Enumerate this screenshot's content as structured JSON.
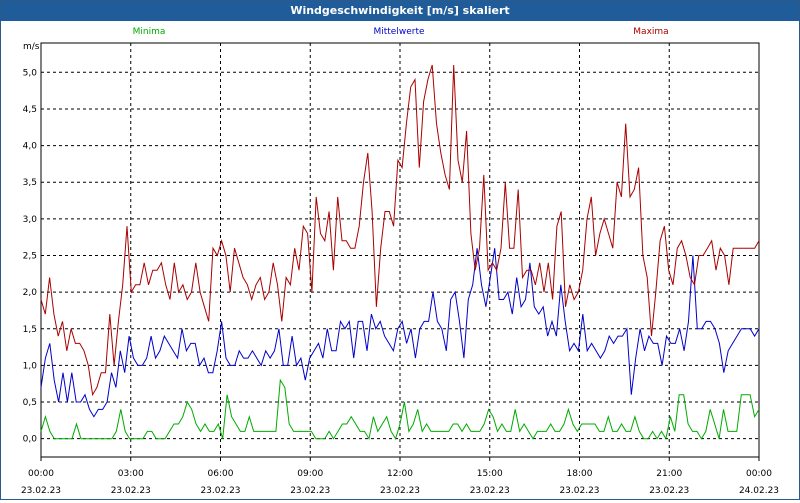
{
  "window": {
    "title": "Windgeschwindigkeit [m/s] skaliert"
  },
  "chart_data": {
    "type": "line",
    "title": "Windgeschwindigkeit [m/s] skaliert",
    "ylabel": "m/s",
    "xlabel": "",
    "ylim": [
      -0.25,
      5.4
    ],
    "xlim": [
      0,
      24
    ],
    "grid": true,
    "legend_placement": "top",
    "yticks": [
      0.0,
      0.5,
      1.0,
      1.5,
      2.0,
      2.5,
      3.0,
      3.5,
      4.0,
      4.5,
      5.0
    ],
    "ytick_labels": [
      "0,0",
      "0,5",
      "1,0",
      "1,5",
      "2,0",
      "2,5",
      "3,0",
      "3,5",
      "4,0",
      "4,5",
      "5,0"
    ],
    "xticks": [
      {
        "time": "00:00",
        "date": "23.02.23"
      },
      {
        "time": "03:00",
        "date": "23.02.23"
      },
      {
        "time": "06:00",
        "date": "23.02.23"
      },
      {
        "time": "09:00",
        "date": "23.02.23"
      },
      {
        "time": "12:00",
        "date": "23.02.23"
      },
      {
        "time": "15:00",
        "date": "23.02.23"
      },
      {
        "time": "18:00",
        "date": "23.02.23"
      },
      {
        "time": "21:00",
        "date": "23.02.23"
      },
      {
        "time": "00:00",
        "date": "24.02.23"
      }
    ],
    "x_step_hours": 0.1667,
    "series": [
      {
        "name": "Minima",
        "color": "#00aa00",
        "values": [
          0.1,
          0.3,
          0.1,
          0.0,
          0.0,
          0.0,
          0.0,
          0.0,
          0.2,
          0.0,
          0.0,
          0.0,
          0.0,
          0.0,
          0.0,
          0.0,
          0.0,
          0.1,
          0.4,
          0.1,
          0.0,
          0.0,
          0.0,
          0.0,
          0.1,
          0.1,
          0.0,
          0.0,
          0.0,
          0.1,
          0.2,
          0.2,
          0.3,
          0.5,
          0.4,
          0.2,
          0.1,
          0.2,
          0.1,
          0.1,
          0.2,
          0.0,
          0.6,
          0.3,
          0.2,
          0.1,
          0.1,
          0.3,
          0.1,
          0.1,
          0.1,
          0.1,
          0.1,
          0.1,
          0.8,
          0.7,
          0.2,
          0.1,
          0.1,
          0.1,
          0.1,
          0.1,
          0.0,
          0.0,
          0.0,
          0.1,
          0.0,
          0.1,
          0.2,
          0.2,
          0.3,
          0.2,
          0.1,
          0.1,
          0.0,
          0.3,
          0.1,
          0.2,
          0.3,
          0.1,
          0.0,
          0.2,
          0.5,
          0.1,
          0.2,
          0.4,
          0.1,
          0.2,
          0.1,
          0.1,
          0.1,
          0.1,
          0.1,
          0.2,
          0.2,
          0.1,
          0.2,
          0.1,
          0.1,
          0.1,
          0.2,
          0.4,
          0.3,
          0.1,
          0.2,
          0.1,
          0.1,
          0.4,
          0.1,
          0.2,
          0.1,
          0.0,
          0.1,
          0.1,
          0.1,
          0.2,
          0.1,
          0.1,
          0.2,
          0.4,
          0.2,
          0.1,
          0.2,
          0.2,
          0.2,
          0.2,
          0.1,
          0.1,
          0.3,
          0.1,
          0.1,
          0.2,
          0.1,
          0.1,
          0.3,
          0.1,
          0.0,
          0.0,
          0.1,
          0.0,
          0.1,
          0.0,
          0.3,
          0.1,
          0.6,
          0.6,
          0.2,
          0.1,
          0.1,
          0.0,
          0.1,
          0.4,
          0.2,
          0.0,
          0.4,
          0.1,
          0.1,
          0.1,
          0.6,
          0.6,
          0.6,
          0.3,
          0.4
        ]
      },
      {
        "name": "Mittelwerte",
        "color": "#0000cc",
        "values": [
          0.7,
          1.1,
          1.3,
          0.8,
          0.5,
          0.9,
          0.5,
          0.9,
          0.5,
          0.5,
          0.6,
          0.4,
          0.3,
          0.4,
          0.4,
          0.5,
          0.9,
          0.7,
          1.2,
          0.9,
          1.4,
          1.1,
          1.0,
          1.0,
          1.1,
          1.4,
          1.1,
          1.2,
          1.4,
          1.3,
          1.2,
          1.1,
          1.5,
          1.2,
          1.3,
          1.3,
          1.0,
          1.1,
          0.9,
          0.9,
          1.2,
          1.6,
          1.1,
          1.0,
          1.0,
          1.2,
          1.1,
          1.1,
          1.2,
          1.1,
          1.0,
          1.2,
          1.1,
          1.2,
          1.5,
          1.0,
          1.0,
          1.4,
          1.0,
          1.1,
          0.8,
          1.1,
          1.2,
          1.3,
          1.1,
          1.5,
          1.2,
          1.2,
          1.6,
          1.5,
          1.6,
          1.1,
          1.6,
          1.6,
          1.2,
          1.7,
          1.5,
          1.6,
          1.4,
          1.3,
          1.2,
          1.5,
          1.6,
          1.3,
          1.5,
          1.1,
          1.5,
          1.6,
          1.6,
          2.0,
          1.6,
          1.5,
          1.2,
          1.9,
          2.0,
          1.6,
          1.1,
          1.9,
          2.1,
          2.6,
          2.1,
          1.8,
          2.2,
          2.6,
          1.9,
          1.9,
          2.0,
          1.7,
          2.2,
          1.8,
          1.9,
          2.4,
          1.8,
          1.7,
          1.8,
          1.4,
          1.6,
          1.4,
          2.1,
          1.6,
          1.2,
          1.3,
          1.2,
          1.7,
          1.2,
          1.3,
          1.2,
          1.1,
          1.2,
          1.4,
          1.3,
          1.4,
          1.4,
          1.5,
          0.6,
          1.1,
          1.5,
          1.2,
          1.4,
          1.3,
          1.3,
          1.0,
          1.4,
          1.3,
          1.3,
          1.5,
          1.2,
          1.6,
          2.5,
          1.5,
          1.5,
          1.6,
          1.6,
          1.5,
          1.3,
          0.9,
          1.2,
          1.3,
          1.4,
          1.5,
          1.5,
          1.5,
          1.4,
          1.5
        ]
      },
      {
        "name": "Maxima",
        "color": "#aa0000",
        "values": [
          1.9,
          1.7,
          2.2,
          1.7,
          1.4,
          1.6,
          1.2,
          1.5,
          1.3,
          1.3,
          1.2,
          1.0,
          0.6,
          0.7,
          0.9,
          0.9,
          1.7,
          1.0,
          1.6,
          2.1,
          2.9,
          2.0,
          2.1,
          2.1,
          2.4,
          2.1,
          2.3,
          2.3,
          2.4,
          2.1,
          1.9,
          2.4,
          2.0,
          2.1,
          1.9,
          2.0,
          2.4,
          2.0,
          1.8,
          1.6,
          2.6,
          2.5,
          2.7,
          2.5,
          2.0,
          2.6,
          2.4,
          2.2,
          2.1,
          1.9,
          2.1,
          2.2,
          1.9,
          2.0,
          2.4,
          2.1,
          1.6,
          2.2,
          2.1,
          2.6,
          2.3,
          2.9,
          2.8,
          2.0,
          3.3,
          2.8,
          2.7,
          3.1,
          2.3,
          3.3,
          2.7,
          2.7,
          2.6,
          2.6,
          2.9,
          3.5,
          3.9,
          3.1,
          1.8,
          2.6,
          3.1,
          3.1,
          2.9,
          3.8,
          3.7,
          4.3,
          4.8,
          4.9,
          3.7,
          4.6,
          4.9,
          5.1,
          4.3,
          3.9,
          3.6,
          3.4,
          5.1,
          3.8,
          3.5,
          4.2,
          2.8,
          2.3,
          2.6,
          3.6,
          2.3,
          2.4,
          2.3,
          2.6,
          3.5,
          2.6,
          2.6,
          3.4,
          2.2,
          2.3,
          2.3,
          2.1,
          2.4,
          2.0,
          2.4,
          1.9,
          2.9,
          3.1,
          1.8,
          2.1,
          1.9,
          2.0,
          2.3,
          3.0,
          3.3,
          2.5,
          2.8,
          3.0,
          2.8,
          2.6,
          3.5,
          3.3,
          4.3,
          3.3,
          3.4,
          3.7,
          2.5,
          2.2,
          1.4,
          2.0,
          2.7,
          2.9,
          2.3,
          2.1,
          2.6,
          2.7,
          2.5,
          2.2,
          2.1,
          2.5,
          2.5,
          2.6,
          2.7,
          2.3,
          2.6,
          2.5,
          2.1,
          2.6,
          2.6,
          2.6,
          2.6,
          2.6,
          2.6,
          2.7
        ]
      }
    ]
  }
}
